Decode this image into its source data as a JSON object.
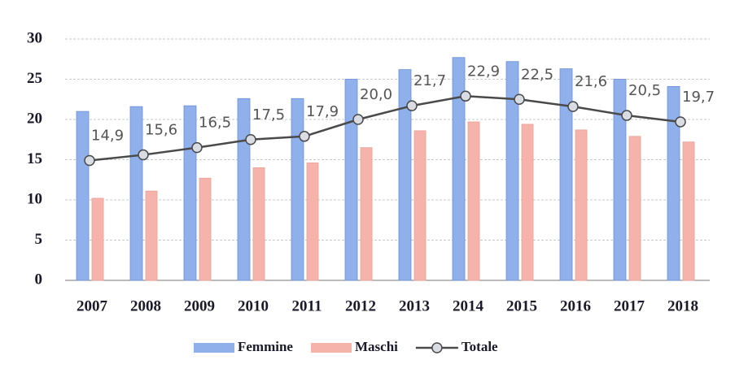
{
  "chart_data": {
    "type": "bar",
    "categories": [
      "2007",
      "2008",
      "2009",
      "2010",
      "2011",
      "2012",
      "2013",
      "2014",
      "2015",
      "2016",
      "2017",
      "2018"
    ],
    "series": [
      {
        "name": "Femmine",
        "color": "#8fb0ea",
        "values": [
          21,
          21.6,
          21.7,
          22.6,
          22.6,
          25,
          26.2,
          27.7,
          27.2,
          26.3,
          25,
          24.1
        ]
      },
      {
        "name": "Maschi",
        "color": "#f6b3ab",
        "values": [
          10.2,
          11.1,
          12.7,
          14,
          14.6,
          16.5,
          18.6,
          19.7,
          19.4,
          18.7,
          17.9,
          17.2
        ]
      },
      {
        "name": "Totale",
        "type": "line",
        "color": "#4a4a4a",
        "marker_color": "#d9dde3",
        "values": [
          14.9,
          15.6,
          16.5,
          17.5,
          17.9,
          20.0,
          21.7,
          22.9,
          22.5,
          21.6,
          20.5,
          19.7
        ],
        "value_labels": [
          "14,9",
          "15,6",
          "16,5",
          "17,5",
          "17,9",
          "20,0",
          "21,7",
          "22,9",
          "22,5",
          "21,6",
          "20,5",
          "19,7"
        ]
      }
    ],
    "ylim": [
      0,
      30
    ],
    "yticks": [
      0,
      5,
      10,
      15,
      20,
      25,
      30
    ],
    "grid": true,
    "legend": "bottom"
  }
}
